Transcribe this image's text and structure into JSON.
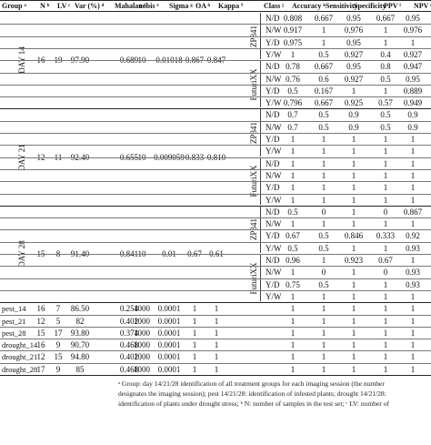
{
  "headers": [
    "Group ᵃ",
    "N ᵇ",
    "LV ᶜ",
    "Var (%) ᵈ",
    "Mahalanobis ᵉ",
    "c ᶠ",
    "Sigma ᵍ",
    "OA ʰ",
    "Kappa ⁱ",
    "Class ʲ",
    "Accuracy ᵏ",
    "Sensitivity",
    "Specificity",
    "PPV ˡ",
    "NPV ᵐ"
  ],
  "day_blocks": [
    {
      "group": "DAY 14",
      "n": "16",
      "lv": "19",
      "var": "97.90",
      "mahalanobis": "0.689",
      "c": "10",
      "sigma": "0.01018",
      "oa": "0.867",
      "kappa": "0.847",
      "cultivars": [
        {
          "name": "ZP341",
          "rows": [
            [
              "N/D",
              "0.808",
              "0.667",
              "0.95",
              "0.667",
              "0.95"
            ],
            [
              "N/W",
              "0.917",
              "1",
              "0.976",
              "1",
              "0.976"
            ],
            [
              "Y/D",
              "0.975",
              "1",
              "0.95",
              "1",
              "1"
            ],
            [
              "Y/W",
              "1",
              "0.5",
              "0.927",
              "0.4",
              "0.927"
            ]
          ]
        },
        {
          "name": "FuturiXX",
          "rows": [
            [
              "N/D",
              "0.78",
              "0.667",
              "0.95",
              "0.8",
              "0.947"
            ],
            [
              "N/W",
              "0.76",
              "0.6",
              "0.927",
              "0.5",
              "0.95"
            ],
            [
              "Y/D",
              "0.5",
              "0.167",
              "1",
              "1",
              "0.889"
            ],
            [
              "Y/W",
              "0.796",
              "0.667",
              "0.925",
              "0.57",
              "0.949"
            ]
          ]
        }
      ]
    },
    {
      "group": "DAY 21",
      "n": "12",
      "lv": "11",
      "var": "92.40",
      "mahalanobis": "0.655",
      "c": "10",
      "sigma": "0.009059",
      "oa": "0.833",
      "kappa": "0.810",
      "cultivars": [
        {
          "name": "ZP341",
          "rows": [
            [
              "N/D",
              "0.7",
              "0.5",
              "0.9",
              "0.5",
              "0.9"
            ],
            [
              "N/W",
              "0.7",
              "0.5",
              "0.9",
              "0.5",
              "0.9"
            ],
            [
              "Y/D",
              "1",
              "1",
              "1",
              "1",
              "1"
            ],
            [
              "Y/W",
              "1",
              "1",
              "1",
              "1",
              "1"
            ]
          ]
        },
        {
          "name": "FuturiXX",
          "rows": [
            [
              "N/D",
              "1",
              "1",
              "1",
              "1",
              "1"
            ],
            [
              "N/W",
              "1",
              "1",
              "1",
              "1",
              "1"
            ],
            [
              "Y/D",
              "1",
              "1",
              "1",
              "1",
              "1"
            ],
            [
              "Y/W",
              "1",
              "1",
              "1",
              "1",
              "1"
            ]
          ]
        }
      ]
    },
    {
      "group": "DAY 28",
      "n": "15",
      "lv": "8",
      "var": "91.40",
      "mahalanobis": "0.841",
      "c": "10",
      "sigma": "0.01",
      "oa": "0.67",
      "kappa": "0.61",
      "cultivars": [
        {
          "name": "ZP341",
          "rows": [
            [
              "N/D",
              "0.5",
              "0",
              "1",
              "0",
              "0.867"
            ],
            [
              "N/W",
              "1",
              "1",
              "1",
              "1",
              "1"
            ],
            [
              "Y/D",
              "0.67",
              "0.5",
              "0.846",
              "0.333",
              "0.92"
            ],
            [
              "Y/W",
              "0.5",
              "0.5",
              "1",
              "1",
              "0.93"
            ]
          ]
        },
        {
          "name": "FuturiXX",
          "rows": [
            [
              "N/D",
              "0.96",
              "1",
              "0.923",
              "0.67",
              "1"
            ],
            [
              "N/W",
              "1",
              "0",
              "1",
              "0",
              "0.93"
            ],
            [
              "Y/D",
              "0.75",
              "0.5",
              "1",
              "1",
              "0.93"
            ],
            [
              "Y/W",
              "1",
              "1",
              "1",
              "1",
              "1"
            ]
          ]
        }
      ]
    }
  ],
  "stress_rows": [
    {
      "group": "pest_14",
      "n": "16",
      "lv": "7",
      "var": "86.50",
      "mahalanobis": "0.254",
      "c": "1000",
      "sigma": "0.0001",
      "oa": "1",
      "kappa": "1",
      "class": "",
      "vals": [
        "1",
        "1",
        "1",
        "1",
        "1"
      ]
    },
    {
      "group": "pest_21",
      "n": "12",
      "lv": "5",
      "var": "82",
      "mahalanobis": "0.402",
      "c": "1000",
      "sigma": "0.0001",
      "oa": "1",
      "kappa": "1",
      "class": "",
      "vals": [
        "1",
        "1",
        "1",
        "1",
        "1"
      ]
    },
    {
      "group": "pest_28",
      "n": "15",
      "lv": "17",
      "var": "93.80",
      "mahalanobis": "0.374",
      "c": "1000",
      "sigma": "0.0001",
      "oa": "1",
      "kappa": "1",
      "class": "",
      "vals": [
        "1",
        "1",
        "1",
        "1",
        "1"
      ]
    },
    {
      "group": "drought_14",
      "n": "16",
      "lv": "9",
      "var": "90.70",
      "mahalanobis": "0.468",
      "c": "1000",
      "sigma": "0.0001",
      "oa": "1",
      "kappa": "1",
      "class": "",
      "vals": [
        "1",
        "1",
        "1",
        "1",
        "1"
      ]
    },
    {
      "group": "drought_21",
      "n": "12",
      "lv": "15",
      "var": "94.80",
      "mahalanobis": "0.402",
      "c": "1000",
      "sigma": "0.0001",
      "oa": "1",
      "kappa": "1",
      "class": "",
      "vals": [
        "1",
        "1",
        "1",
        "1",
        "1"
      ]
    },
    {
      "group": "drought_28",
      "n": "17",
      "lv": "9",
      "var": "85",
      "mahalanobis": "0.468",
      "c": "1000",
      "sigma": "0.0001",
      "oa": "1",
      "kappa": "1",
      "class": "",
      "vals": [
        "1",
        "1",
        "1",
        "1",
        "1"
      ]
    }
  ],
  "footnotes": [
    "ᵃ Group: day 14/21/28 identification of all treatment groups for each imaging session (the number",
    "designates the imaging session); pest 14/21/28: identification of infested plants; drought 14/21/28:",
    "identification of plants under drought stress; ᵇ N: number of samples in the test set; ᶜ LV: number of"
  ]
}
